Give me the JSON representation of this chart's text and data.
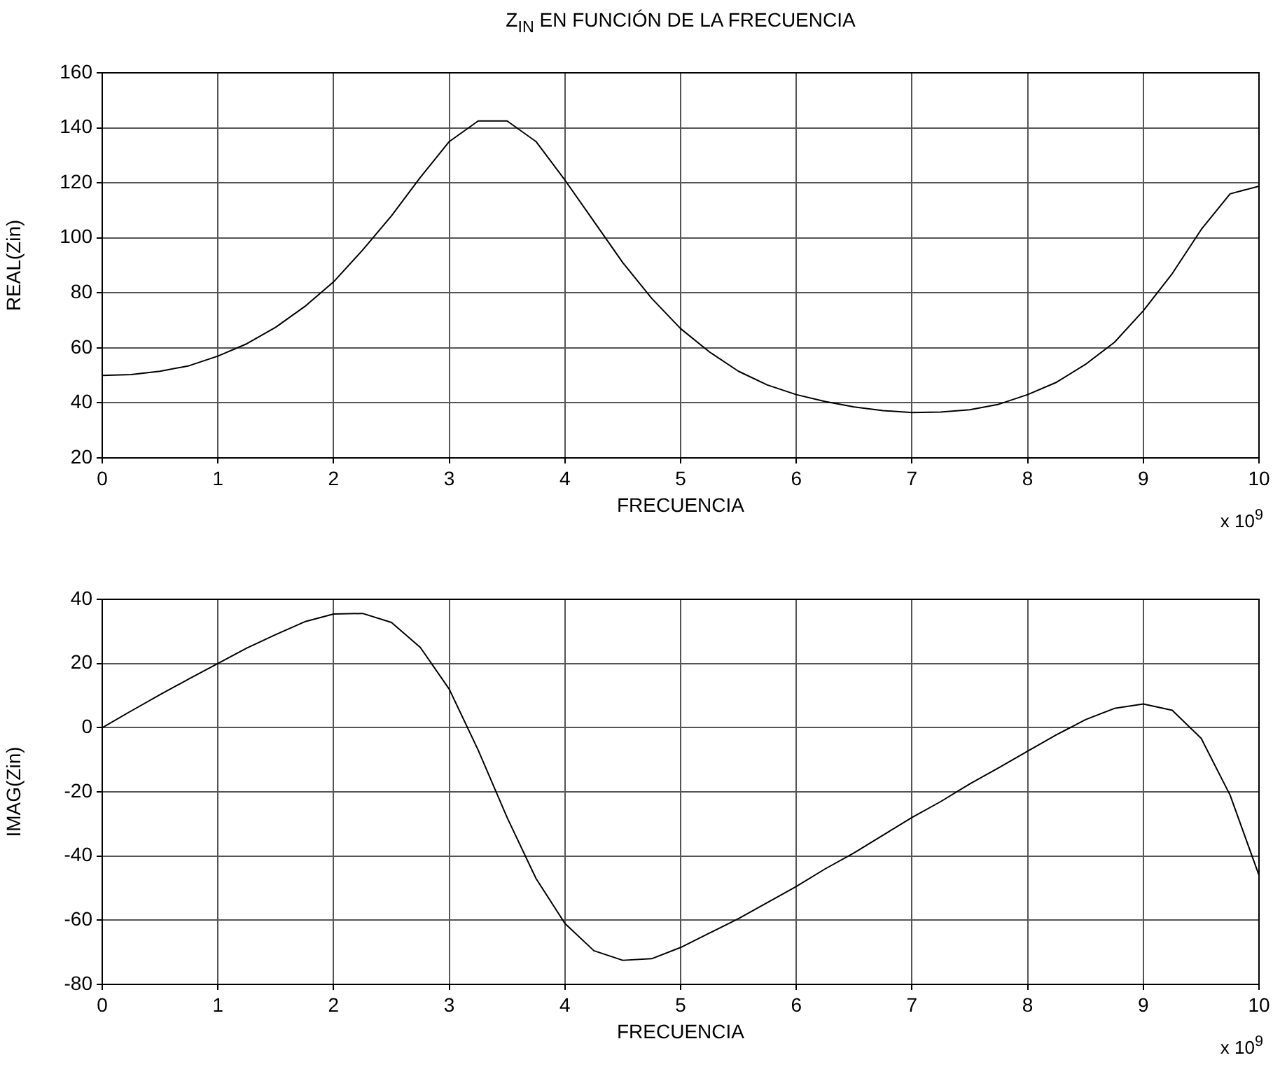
{
  "chart_data": [
    {
      "type": "line",
      "title": "Z$_{IN}$ EN FUNCIÓN DE LA FRECUENCIA",
      "xlabel": "FRECUENCIA",
      "ylabel": "REAL(Zin)",
      "x": [
        0,
        0.25,
        0.5,
        0.75,
        1,
        1.25,
        1.5,
        1.75,
        2,
        2.25,
        2.5,
        2.75,
        3,
        3.25,
        3.5,
        3.75,
        4,
        4.25,
        4.5,
        4.75,
        5,
        5.25,
        5.5,
        5.75,
        6,
        6.25,
        6.5,
        6.75,
        7,
        7.25,
        7.5,
        7.75,
        8,
        8.25,
        8.5,
        8.75,
        9,
        9.25,
        9.5,
        9.75,
        10
      ],
      "series": [
        {
          "color": "#000000",
          "values": [
            50,
            50.3,
            51.5,
            53.5,
            57,
            61.5,
            67.5,
            75,
            84,
            95.5,
            108,
            122,
            135,
            142.5,
            142.5,
            135,
            121,
            106,
            91,
            78,
            67,
            58.5,
            51.5,
            46.5,
            43,
            40.5,
            38.5,
            37.2,
            36.5,
            36.7,
            37.5,
            39.5,
            43,
            47.5,
            54,
            62,
            73.5,
            87,
            103,
            116,
            118.8
          ]
        }
      ],
      "xlim": [
        0,
        10
      ],
      "xticks": [
        0,
        1,
        2,
        3,
        4,
        5,
        6,
        7,
        8,
        9,
        10
      ],
      "ylim": [
        20,
        160
      ],
      "yticks": [
        20,
        40,
        60,
        80,
        100,
        120,
        140,
        160
      ],
      "grid": true,
      "marker": "none",
      "line_style": "solid",
      "annotations": [
        "x 10$^{9}$"
      ]
    },
    {
      "type": "line",
      "xlabel": "FRECUENCIA",
      "ylabel": "IMAG(Zin)",
      "x": [
        0,
        0.25,
        0.5,
        0.75,
        1,
        1.25,
        1.5,
        1.75,
        2,
        2.25,
        2.5,
        2.75,
        3,
        3.25,
        3.5,
        3.75,
        4,
        4.25,
        4.5,
        4.75,
        5,
        5.25,
        5.5,
        5.75,
        6,
        6.25,
        6.5,
        6.75,
        7,
        7.25,
        7.5,
        7.75,
        8,
        8.25,
        8.5,
        8.75,
        9,
        9.25,
        9.5,
        9.75,
        10
      ],
      "series": [
        {
          "color": "#000000",
          "values": [
            0,
            5.2,
            10.3,
            15.2,
            20,
            24.8,
            29,
            33,
            35.4,
            35.6,
            32.8,
            25,
            12,
            -7,
            -28,
            -47,
            -61,
            -69.5,
            -72.5,
            -72,
            -68.5,
            -64,
            -59.5,
            -54.5,
            -49.5,
            -44,
            -39,
            -33.5,
            -28,
            -23,
            -17.5,
            -12.5,
            -7.3,
            -2.2,
            2.5,
            6,
            7.4,
            5.4,
            -3.3,
            -21,
            -46
          ]
        }
      ],
      "xlim": [
        0,
        10
      ],
      "xticks": [
        0,
        1,
        2,
        3,
        4,
        5,
        6,
        7,
        8,
        9,
        10
      ],
      "ylim": [
        -80,
        40
      ],
      "yticks": [
        -80,
        -60,
        -40,
        -20,
        0,
        20,
        40
      ],
      "grid": true,
      "marker": "none",
      "line_style": "solid",
      "annotations": [
        "x 10$^{9}$"
      ]
    }
  ]
}
